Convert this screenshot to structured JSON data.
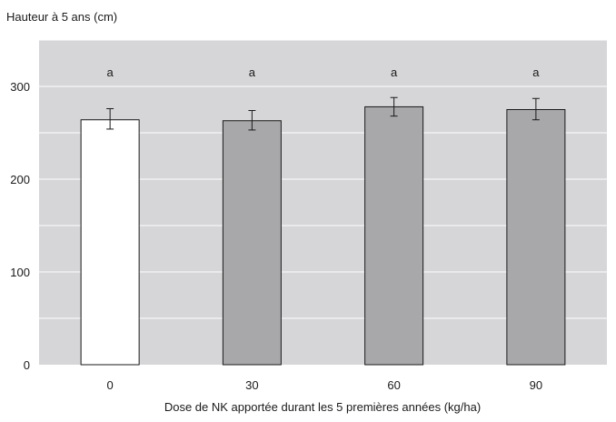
{
  "chart_data": {
    "type": "bar",
    "ylabel": "Hauteur à 5 ans (cm)",
    "xlabel": "Dose de NK apportée durant les 5 premières années (kg/ha)",
    "categories": [
      "0",
      "30",
      "60",
      "90"
    ],
    "values": [
      264,
      263,
      278,
      275
    ],
    "error_low": [
      254,
      253,
      268,
      264
    ],
    "error_high": [
      276,
      274,
      288,
      287
    ],
    "significance_letters": [
      "a",
      "a",
      "a",
      "a"
    ],
    "bar_colors": [
      "#ffffff",
      "#a8a8aa",
      "#a8a8aa",
      "#a8a8aa"
    ],
    "plot_background": "#d6d6d8",
    "ylim": [
      0,
      350
    ],
    "yticks": [
      0,
      100,
      200,
      300
    ],
    "grid": true,
    "grid_step": 50
  }
}
